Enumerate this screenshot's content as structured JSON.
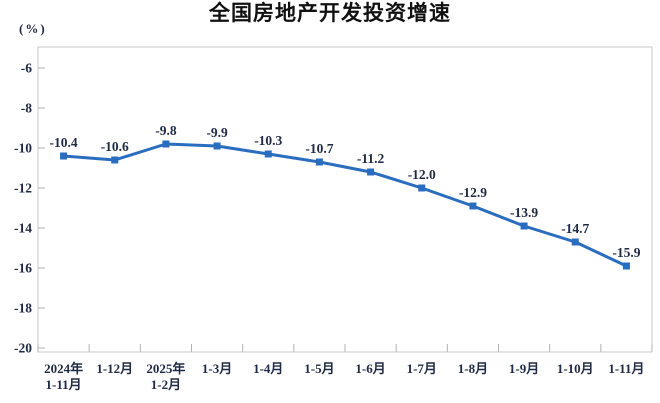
{
  "title": "全国房地产开发投资增速",
  "unit_label": "(%)",
  "chart_data": {
    "type": "line",
    "title": "全国房地产开发投资增速",
    "ylabel": "(%)",
    "categories": [
      [
        "2024年",
        "1-11月"
      ],
      [
        "1-12月"
      ],
      [
        "2025年",
        "1-2月"
      ],
      [
        "1-3月"
      ],
      [
        "1-4月"
      ],
      [
        "1-5月"
      ],
      [
        "1-6月"
      ],
      [
        "1-7月"
      ],
      [
        "1-8月"
      ],
      [
        "1-9月"
      ],
      [
        "1-10月"
      ],
      [
        "1-11月"
      ]
    ],
    "values": [
      -10.4,
      -10.6,
      -9.8,
      -9.9,
      -10.3,
      -10.7,
      -11.2,
      -12.0,
      -12.9,
      -13.9,
      -14.7,
      -15.9
    ],
    "data_labels": [
      "-10.4",
      "-10.6",
      "-9.8",
      "-9.9",
      "-10.3",
      "-10.7",
      "-11.2",
      "-12.0",
      "-12.9",
      "-13.9",
      "-14.7",
      "-15.9"
    ],
    "yticks": [
      -6,
      -8,
      -10,
      -12,
      -14,
      -16,
      -18,
      -20
    ],
    "ylim": [
      -20.2,
      -5
    ],
    "grid": false,
    "legend": "none",
    "marker": "square",
    "line_color": "#2a6dbf",
    "text_color": "#1f2a44",
    "axis_color": "#c9c9c9",
    "tick_color": "#b3b3b3"
  }
}
